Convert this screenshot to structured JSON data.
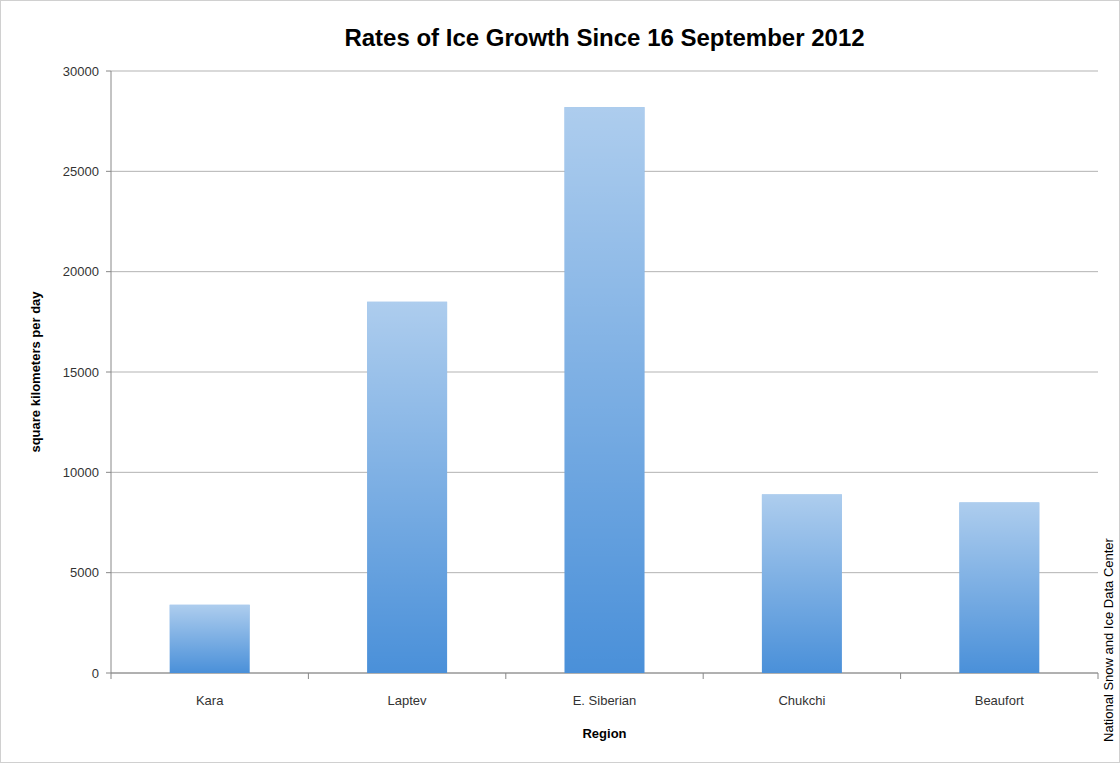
{
  "chart_data": {
    "type": "bar",
    "title": "Rates of Ice Growth Since 16 September 2012",
    "x_label": "Region",
    "y_label": "square kilometers per day",
    "source": "National Snow and Ice Data Center",
    "categories": [
      "Kara",
      "Laptev",
      "E. Siberian",
      "Chukchi",
      "Beaufort"
    ],
    "values": [
      3400,
      18500,
      28200,
      8900,
      8500
    ],
    "color": "#4a90d9",
    "ylim": [
      0,
      30000
    ],
    "yticks": [
      0,
      5000,
      10000,
      15000,
      20000,
      25000,
      30000
    ],
    "grid": true
  }
}
